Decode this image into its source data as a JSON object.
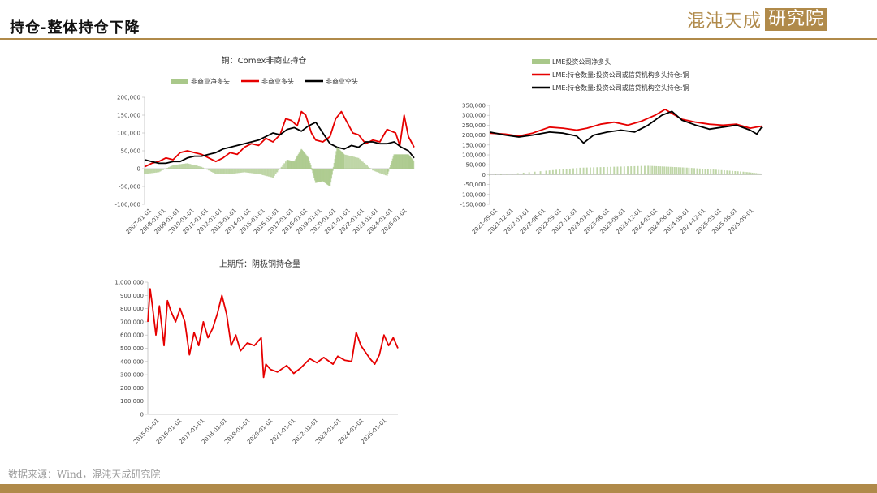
{
  "header": {
    "title": "持仓-整体持仓下降",
    "logo_text": "混沌天成",
    "logo_box_text": "研究院"
  },
  "footer": {
    "source": "数据来源：Wind，混沌天成研究院"
  },
  "colors": {
    "accent": "#b08a4a",
    "red": "#e60000",
    "black": "#000000",
    "green": "#a9c88a"
  },
  "chart_data": [
    {
      "id": "comex",
      "type": "line",
      "title": "铜：Comex非商业持仓",
      "y_ticks": [
        "200,000",
        "150,000",
        "100,000",
        "50,000",
        "0",
        "-50,000",
        "-100,000"
      ],
      "ylim": [
        -100000,
        200000
      ],
      "x_ticks": [
        "2007-01-01",
        "2008-01-01",
        "2009-01-01",
        "2010-01-01",
        "2011-01-01",
        "2012-01-01",
        "2013-01-01",
        "2014-01-01",
        "2015-01-01",
        "2016-01-01",
        "2017-01-01",
        "2018-01-01",
        "2019-01-01",
        "2020-01-01",
        "2021-01-01",
        "2022-01-01",
        "2023-01-01",
        "2024-01-01",
        "2025-01-01"
      ],
      "xlim": [
        2007.0,
        2025.9
      ],
      "legend": [
        "非商业净多头",
        "非商业多头",
        "非商业空头"
      ],
      "series": [
        {
          "name": "非商业多头",
          "color": "red",
          "x": [
            2007.0,
            2007.5,
            2008.0,
            2008.5,
            2009.0,
            2009.5,
            2010.0,
            2010.5,
            2011.0,
            2011.5,
            2012.0,
            2012.5,
            2013.0,
            2013.5,
            2014.0,
            2014.5,
            2015.0,
            2015.5,
            2016.0,
            2016.5,
            2016.9,
            2017.3,
            2017.7,
            2018.0,
            2018.3,
            2018.7,
            2019.0,
            2019.5,
            2020.0,
            2020.4,
            2020.8,
            2021.2,
            2021.6,
            2022.0,
            2022.5,
            2023.0,
            2023.5,
            2024.0,
            2024.3,
            2024.6,
            2024.9,
            2025.2,
            2025.5,
            2025.9
          ],
          "y": [
            5000,
            15000,
            20000,
            30000,
            25000,
            45000,
            50000,
            45000,
            40000,
            30000,
            20000,
            30000,
            45000,
            40000,
            60000,
            70000,
            65000,
            85000,
            75000,
            95000,
            140000,
            135000,
            120000,
            160000,
            150000,
            100000,
            80000,
            75000,
            90000,
            140000,
            160000,
            130000,
            100000,
            95000,
            70000,
            80000,
            75000,
            110000,
            105000,
            100000,
            65000,
            150000,
            90000,
            60000
          ]
        },
        {
          "name": "非商业空头",
          "color": "black",
          "x": [
            2007.0,
            2007.5,
            2008.0,
            2008.5,
            2009.0,
            2009.5,
            2010.0,
            2010.5,
            2011.0,
            2011.5,
            2012.0,
            2012.5,
            2013.0,
            2013.5,
            2014.0,
            2014.5,
            2015.0,
            2015.5,
            2016.0,
            2016.5,
            2017.0,
            2017.5,
            2018.0,
            2018.5,
            2019.0,
            2019.5,
            2020.0,
            2020.5,
            2021.0,
            2021.5,
            2022.0,
            2022.5,
            2023.0,
            2023.5,
            2024.0,
            2024.5,
            2025.0,
            2025.5,
            2025.9
          ],
          "y": [
            25000,
            20000,
            15000,
            15000,
            20000,
            20000,
            30000,
            35000,
            35000,
            40000,
            45000,
            55000,
            60000,
            65000,
            70000,
            75000,
            80000,
            90000,
            100000,
            95000,
            110000,
            115000,
            105000,
            120000,
            130000,
            100000,
            70000,
            60000,
            55000,
            65000,
            60000,
            75000,
            75000,
            70000,
            70000,
            75000,
            60000,
            50000,
            30000
          ]
        },
        {
          "name": "非商业净多头",
          "color": "green",
          "x": [
            2007.0,
            2008.0,
            2009.0,
            2010.0,
            2011.0,
            2012.0,
            2013.0,
            2014.0,
            2015.0,
            2016.0,
            2017.0,
            2017.5,
            2018.0,
            2018.5,
            2019.0,
            2019.5,
            2020.0,
            2020.5,
            2021.0,
            2022.0,
            2023.0,
            2024.0,
            2024.5,
            2025.0,
            2025.5,
            2025.9
          ],
          "y": [
            -15000,
            -10000,
            10000,
            15000,
            5000,
            -15000,
            -15000,
            -10000,
            -15000,
            -25000,
            25000,
            20000,
            55000,
            30000,
            -40000,
            -35000,
            -50000,
            60000,
            40000,
            30000,
            -5000,
            -20000,
            40000,
            40000,
            40000,
            20000
          ]
        }
      ]
    },
    {
      "id": "lme",
      "type": "line",
      "title": "",
      "y_ticks": [
        "350,000",
        "300,000",
        "250,000",
        "200,000",
        "150,000",
        "100,000",
        "50,000",
        "0",
        "-50,000",
        "-100,000",
        "-150,000"
      ],
      "ylim": [
        -150000,
        350000
      ],
      "x_ticks": [
        "2021-09-01",
        "2021-12-01",
        "2022-03-01",
        "2022-06-01",
        "2022-09-01",
        "2022-12-01",
        "2023-03-01",
        "2023-06-01",
        "2023-09-01",
        "2023-12-01",
        "2024-03-01",
        "2024-06-01",
        "2024-09-01",
        "2024-12-01",
        "2025-03-01",
        "2025-06-01",
        "2025-09-01"
      ],
      "xlim": [
        2021.67,
        2025.67
      ],
      "legend": [
        "LME投资公司净多头",
        "LME:持仓数量:投资公司或信贷机构多头持仓:铜",
        "LME:持仓数量:投资公司或信贷机构空头持仓:铜"
      ],
      "series": [
        {
          "name": "LME:持仓数量:投资公司或信贷机构多头持仓:铜",
          "color": "red",
          "x": [
            2021.67,
            2021.9,
            2022.1,
            2022.3,
            2022.55,
            2022.75,
            2022.95,
            2023.1,
            2023.3,
            2023.5,
            2023.7,
            2023.9,
            2024.1,
            2024.25,
            2024.35,
            2024.5,
            2024.7,
            2024.9,
            2025.1,
            2025.3,
            2025.5,
            2025.67
          ],
          "y": [
            210000,
            205000,
            195000,
            210000,
            240000,
            235000,
            225000,
            235000,
            255000,
            265000,
            250000,
            270000,
            300000,
            330000,
            310000,
            280000,
            265000,
            255000,
            250000,
            255000,
            235000,
            245000
          ]
        },
        {
          "name": "LME:持仓数量:投资公司或信贷机构空头持仓:铜",
          "color": "black",
          "x": [
            2021.67,
            2021.9,
            2022.1,
            2022.3,
            2022.55,
            2022.75,
            2022.95,
            2023.05,
            2023.2,
            2023.4,
            2023.6,
            2023.8,
            2024.0,
            2024.2,
            2024.35,
            2024.5,
            2024.7,
            2024.9,
            2025.1,
            2025.3,
            2025.5,
            2025.6,
            2025.67
          ],
          "y": [
            215000,
            200000,
            190000,
            200000,
            215000,
            210000,
            195000,
            160000,
            200000,
            215000,
            225000,
            215000,
            250000,
            300000,
            320000,
            275000,
            250000,
            230000,
            240000,
            250000,
            225000,
            205000,
            240000
          ]
        },
        {
          "name": "LME投资公司净多头",
          "color": "green",
          "x": [
            2021.67,
            2022.5,
            2023.0,
            2023.5,
            2024.0,
            2024.3,
            2024.6,
            2025.0,
            2025.4,
            2025.67
          ],
          "y": [
            -5000,
            20000,
            35000,
            40000,
            45000,
            40000,
            35000,
            25000,
            15000,
            5000
          ]
        }
      ]
    },
    {
      "id": "shfe",
      "type": "line",
      "title": "上期所：阴极铜持仓量",
      "y_ticks": [
        "1,000,000",
        "900,000",
        "800,000",
        "700,000",
        "600,000",
        "500,000",
        "400,000",
        "300,000",
        "200,000",
        "100,000",
        "0"
      ],
      "ylim": [
        0,
        1000000
      ],
      "x_ticks": [
        "2015-01-01",
        "2016-01-01",
        "2017-01-01",
        "2018-01-01",
        "2019-01-01",
        "2020-01-01",
        "2021-01-01",
        "2022-01-01",
        "2023-01-01",
        "2024-01-01",
        "2025-01-01"
      ],
      "xlim": [
        2015.0,
        2025.8
      ],
      "series": [
        {
          "name": "上期所阴极铜持仓量",
          "color": "red",
          "x": [
            2015.0,
            2015.1,
            2015.2,
            2015.35,
            2015.5,
            2015.7,
            2015.85,
            2016.0,
            2016.2,
            2016.4,
            2016.6,
            2016.8,
            2017.0,
            2017.2,
            2017.4,
            2017.6,
            2017.8,
            2018.0,
            2018.2,
            2018.4,
            2018.6,
            2018.8,
            2019.0,
            2019.3,
            2019.6,
            2019.9,
            2020.0,
            2020.1,
            2020.3,
            2020.6,
            2021.0,
            2021.3,
            2021.6,
            2022.0,
            2022.3,
            2022.6,
            2023.0,
            2023.2,
            2023.5,
            2023.8,
            2024.0,
            2024.2,
            2024.4,
            2024.6,
            2024.8,
            2025.0,
            2025.2,
            2025.4,
            2025.6,
            2025.8
          ],
          "y": [
            700000,
            950000,
            820000,
            600000,
            820000,
            520000,
            860000,
            780000,
            700000,
            800000,
            700000,
            450000,
            620000,
            520000,
            700000,
            580000,
            650000,
            760000,
            900000,
            760000,
            520000,
            600000,
            480000,
            540000,
            520000,
            580000,
            280000,
            380000,
            340000,
            320000,
            370000,
            310000,
            350000,
            420000,
            390000,
            430000,
            380000,
            440000,
            410000,
            400000,
            620000,
            520000,
            470000,
            420000,
            380000,
            450000,
            600000,
            520000,
            580000,
            500000
          ]
        }
      ]
    }
  ]
}
